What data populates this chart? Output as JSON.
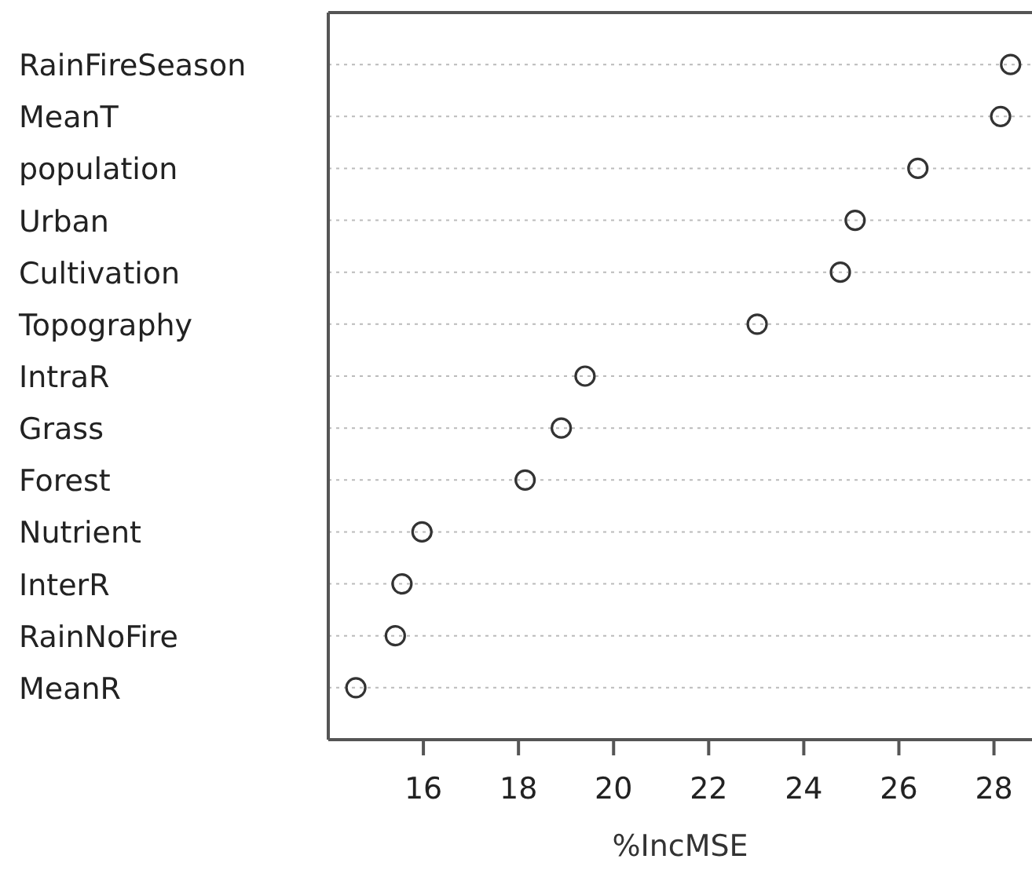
{
  "chart_data": {
    "type": "scatter",
    "orientation": "horizontal",
    "xlabel": "%IncMSE",
    "categories": [
      "RainFireSeason",
      "MeanT",
      "population",
      "Urban",
      "Cultivation",
      "Topography",
      "IntraR",
      "Grass",
      "Forest",
      "Nutrient",
      "InterR",
      "RainNoFire",
      "MeanR"
    ],
    "values": [
      28.35,
      28.14,
      26.4,
      25.08,
      24.77,
      23.02,
      19.4,
      18.9,
      18.14,
      15.97,
      15.55,
      15.41,
      14.58
    ],
    "color": "#333333",
    "marker": "circle",
    "grid": "y",
    "xlim": [
      14,
      28.8
    ],
    "xticks": [
      16,
      18,
      20,
      22,
      24,
      26,
      28
    ]
  }
}
